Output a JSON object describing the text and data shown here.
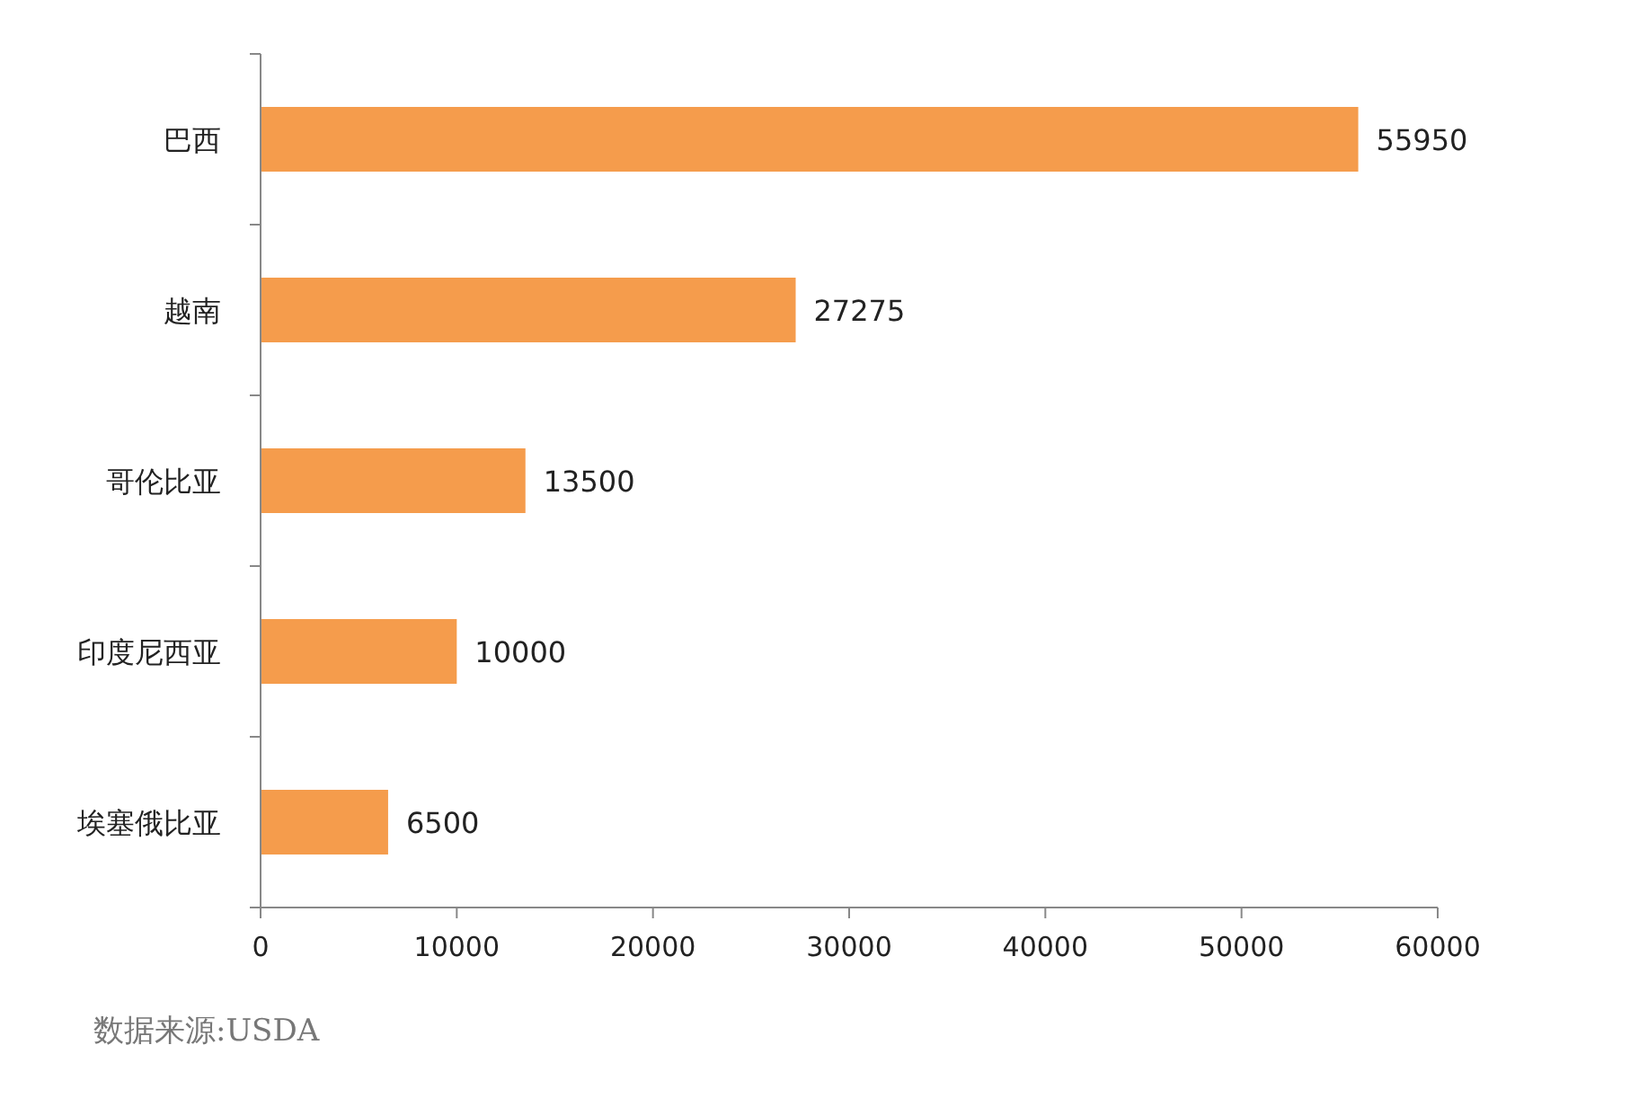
{
  "chart_data": {
    "type": "bar",
    "orientation": "horizontal",
    "categories": [
      "巴西",
      "越南",
      "哥伦比亚",
      "印度尼西亚",
      "埃塞俄比亚"
    ],
    "values": [
      55950,
      27275,
      13500,
      10000,
      6500
    ],
    "color": "#f59c4c",
    "xlim": [
      0,
      60000
    ],
    "xticks": [
      0,
      10000,
      20000,
      30000,
      40000,
      50000,
      60000
    ],
    "data_labels": true,
    "grid": false,
    "annotations": [
      "数据来源:USDA"
    ]
  }
}
